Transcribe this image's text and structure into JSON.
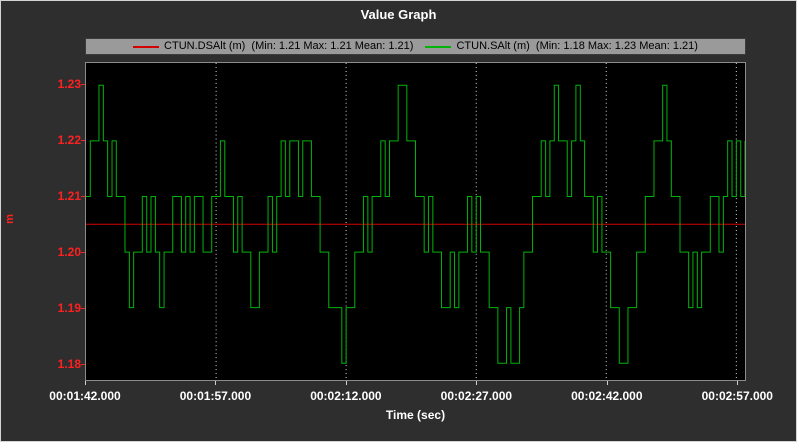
{
  "window": {
    "title": "Value Graph"
  },
  "legend": {
    "items": [
      {
        "label": "CTUN.DSAlt (m)  (Min: 1.21 Max: 1.21 Mean: 1.21)",
        "color": "#d40000"
      },
      {
        "label": "CTUN.SAlt (m)  (Min: 1.18 Max: 1.23 Mean: 1.21)",
        "color": "#00b40a"
      }
    ]
  },
  "axes": {
    "x_title": "Time (sec)",
    "y_unit": "m"
  },
  "chart_data": {
    "type": "line",
    "title": "Value Graph",
    "xlabel": "Time (sec)",
    "ylabel": "m",
    "legend_position": "top",
    "grid": "vertical dotted",
    "x_tick_labels": [
      "00:01:42.000",
      "00:01:57.000",
      "00:02:12.000",
      "00:02:27.000",
      "00:02:42.000",
      "00:02:57.000"
    ],
    "x_tick_seconds": [
      0,
      15,
      30,
      45,
      60,
      75
    ],
    "x_range_seconds": [
      0,
      76
    ],
    "y_ticks": [
      1.23,
      1.22,
      1.21,
      1.2,
      1.19,
      1.18
    ],
    "ylim": [
      1.177,
      1.234
    ],
    "colors": {
      "plot_bg": "#000000",
      "grid": "#d8d8d8",
      "y_tick_label": "#ff2020",
      "x_tick_label": "#ffffff"
    },
    "series": [
      {
        "name": "CTUN.DSAlt (m)",
        "color": "#d40000",
        "style": "constant",
        "value": 1.205,
        "min": 1.21,
        "max": 1.21,
        "mean": 1.21
      },
      {
        "name": "CTUN.SAlt (m)",
        "color": "#00b40a",
        "style": "step",
        "start_second": 0,
        "sample_interval_seconds": 0.5,
        "min": 1.18,
        "max": 1.23,
        "mean": 1.21,
        "values": [
          1.21,
          1.22,
          1.22,
          1.23,
          1.22,
          1.21,
          1.22,
          1.21,
          1.21,
          1.2,
          1.19,
          1.2,
          1.2,
          1.21,
          1.2,
          1.21,
          1.2,
          1.19,
          1.2,
          1.2,
          1.21,
          1.21,
          1.2,
          1.21,
          1.2,
          1.21,
          1.21,
          1.2,
          1.2,
          1.21,
          1.21,
          1.22,
          1.21,
          1.21,
          1.2,
          1.21,
          1.2,
          1.2,
          1.19,
          1.19,
          1.2,
          1.2,
          1.21,
          1.2,
          1.21,
          1.22,
          1.21,
          1.22,
          1.22,
          1.21,
          1.22,
          1.22,
          1.21,
          1.21,
          1.2,
          1.2,
          1.19,
          1.19,
          1.19,
          1.18,
          1.19,
          1.19,
          1.2,
          1.2,
          1.21,
          1.2,
          1.21,
          1.21,
          1.22,
          1.21,
          1.22,
          1.22,
          1.23,
          1.23,
          1.22,
          1.22,
          1.21,
          1.21,
          1.2,
          1.21,
          1.2,
          1.2,
          1.19,
          1.19,
          1.2,
          1.19,
          1.2,
          1.2,
          1.21,
          1.2,
          1.21,
          1.2,
          1.2,
          1.19,
          1.19,
          1.18,
          1.18,
          1.19,
          1.18,
          1.18,
          1.19,
          1.2,
          1.2,
          1.21,
          1.21,
          1.22,
          1.21,
          1.22,
          1.23,
          1.22,
          1.22,
          1.21,
          1.22,
          1.23,
          1.22,
          1.21,
          1.21,
          1.2,
          1.21,
          1.2,
          1.2,
          1.19,
          1.19,
          1.18,
          1.18,
          1.19,
          1.19,
          1.2,
          1.2,
          1.21,
          1.21,
          1.22,
          1.22,
          1.23,
          1.22,
          1.21,
          1.21,
          1.2,
          1.2,
          1.19,
          1.2,
          1.19,
          1.2,
          1.2,
          1.21,
          1.21,
          1.2,
          1.21,
          1.22,
          1.21,
          1.22,
          1.21,
          1.22
        ]
      }
    ]
  }
}
